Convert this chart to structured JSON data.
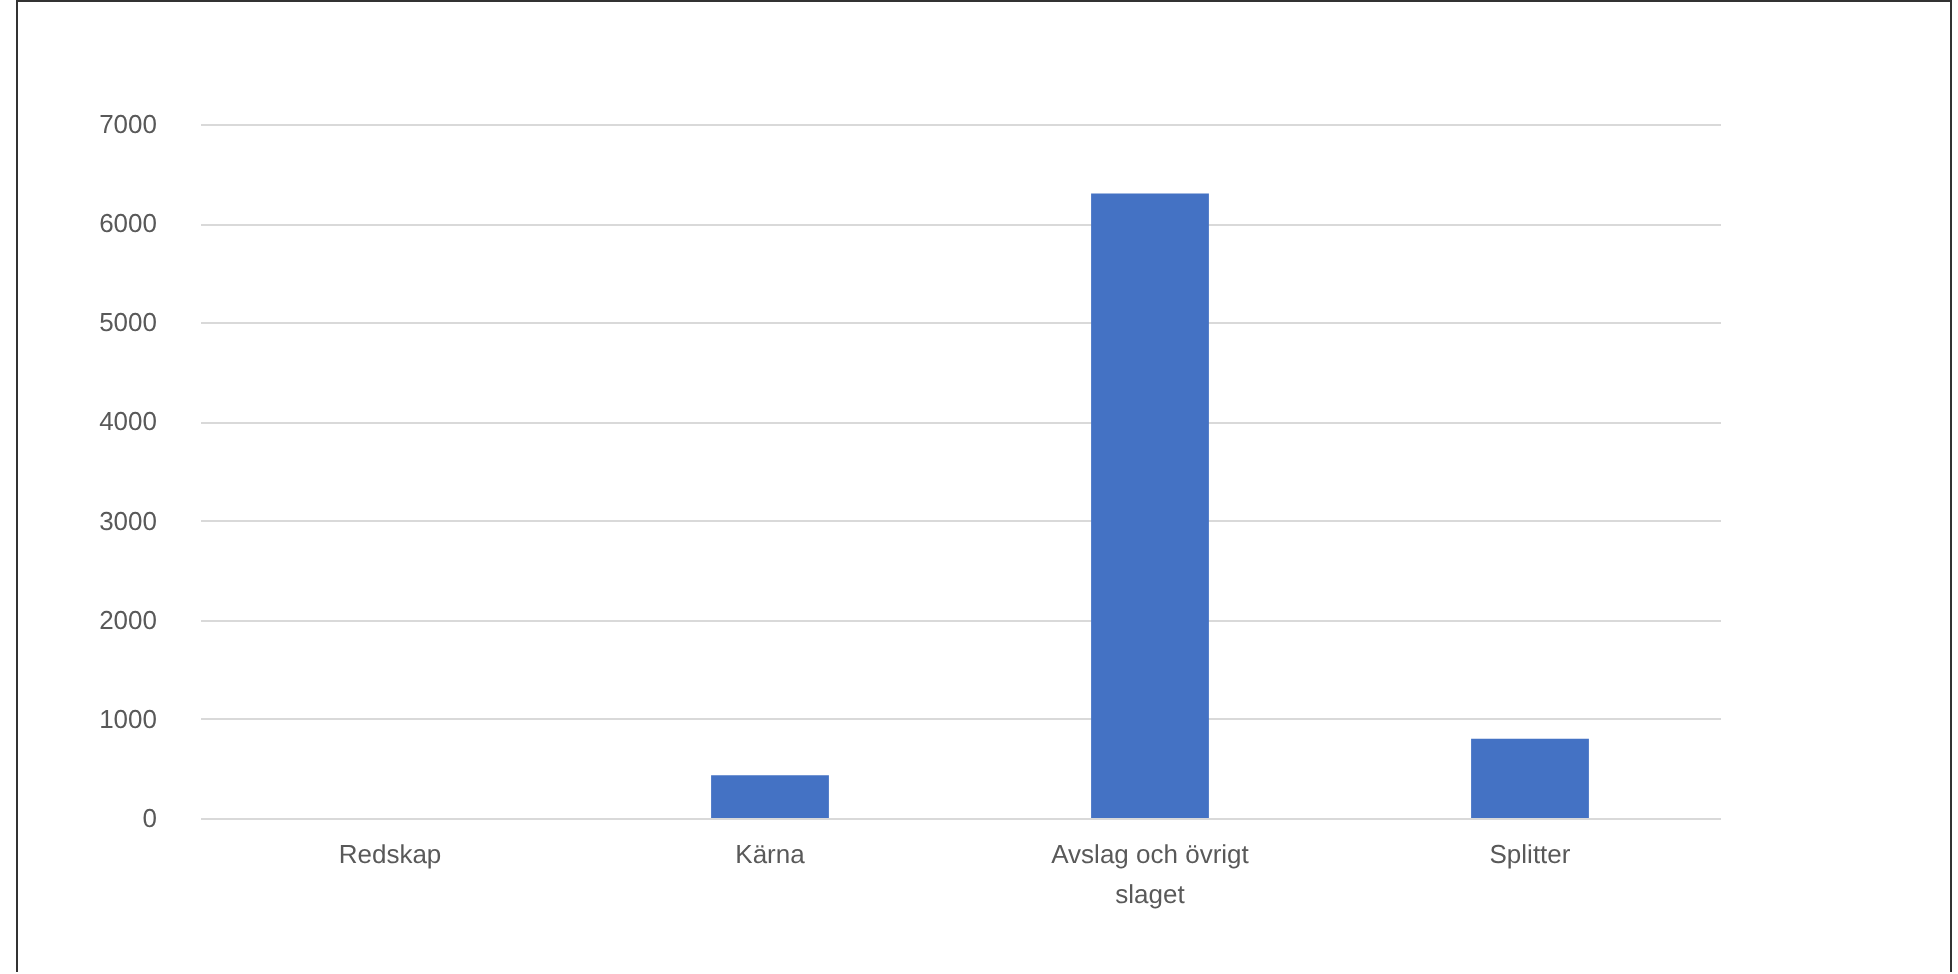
{
  "chart_data": {
    "type": "bar",
    "categories": [
      "Redskap",
      "Kärna",
      "Avslag och övrigt slaget",
      "Splitter"
    ],
    "values": [
      0,
      430,
      6300,
      800
    ],
    "color": "#4472c4",
    "ylim": [
      0,
      7000
    ],
    "yticks": [
      0,
      1000,
      2000,
      3000,
      4000,
      5000,
      6000,
      7000
    ],
    "grid": "y"
  }
}
